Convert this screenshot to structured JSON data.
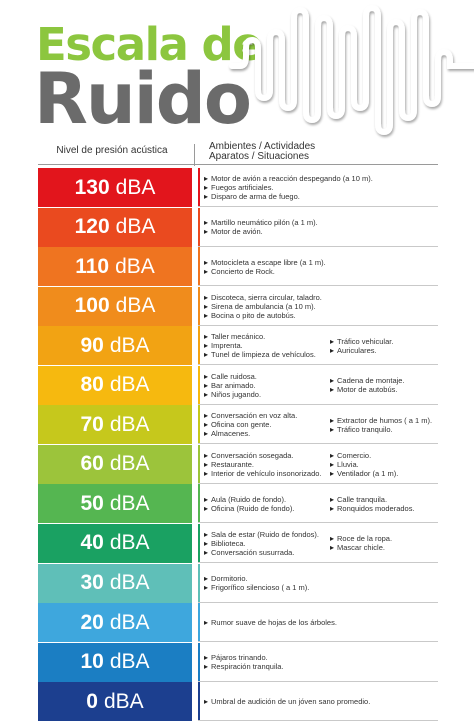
{
  "title": {
    "line1": "Escala de",
    "line2": "Ruido"
  },
  "header": {
    "left": "Nivel de presión acústica",
    "right_line1": "Ambientes / Actividades",
    "right_line2": "Aparatos / Situaciones"
  },
  "unit": "dBA",
  "rows": [
    {
      "level": "130",
      "color": "#e2151c",
      "col1": [
        "Motor de avión a reacción despegando (a 10 m).",
        "Fuegos artificiales.",
        "Disparo de arma de fuego."
      ],
      "col2": []
    },
    {
      "level": "120",
      "color": "#ea4a1f",
      "col1": [
        "Martillo neumático pilón (a 1 m).",
        "Motor de avión."
      ],
      "col2": []
    },
    {
      "level": "110",
      "color": "#ef7420",
      "col1": [
        "Motocicleta a escape libre (a 1 m).",
        "Concierto de Rock."
      ],
      "col2": []
    },
    {
      "level": "100",
      "color": "#f08c1c",
      "col1": [
        "Discoteca, sierra circular, taladro.",
        "Sirena de ambulancia (a 10 m).",
        "Bocina o pito de autobús."
      ],
      "col2": []
    },
    {
      "level": "90",
      "color": "#f2a313",
      "col1": [
        "Taller mecánico.",
        "Imprenta.",
        "Tunel de limpieza de vehículos."
      ],
      "col2": [
        "Tráfico vehicular.",
        "Auriculares."
      ]
    },
    {
      "level": "80",
      "color": "#f6b90f",
      "col1": [
        "Calle ruidosa.",
        "Bar animado.",
        "Niños jugando."
      ],
      "col2": [
        "Cadena de montaje.",
        "Motor de autobús."
      ]
    },
    {
      "level": "70",
      "color": "#c6c81c",
      "col1": [
        "Conversación en voz alta.",
        "Oficina con gente.",
        "Almacenes."
      ],
      "col2": [
        "Extractor de humos ( a 1 m).",
        "Tráfico tranquilo."
      ]
    },
    {
      "level": "60",
      "color": "#9cc43b",
      "col1": [
        "Conversación sosegada.",
        "Restaurante.",
        "Interior de vehículo insonorizado."
      ],
      "col2": [
        "Comercio.",
        "Lluvia.",
        "Ventilador (a 1 m)."
      ]
    },
    {
      "level": "50",
      "color": "#55b651",
      "col1": [
        "Aula (Ruido de fondo).",
        "Oficina (Ruido de fondo)."
      ],
      "col2": [
        "Calle tranquila.",
        "Ronquidos moderados."
      ]
    },
    {
      "level": "40",
      "color": "#1aa162",
      "col1": [
        "Sala de estar (Ruido de fondos).",
        "Biblioteca.",
        "Conversación susurrada."
      ],
      "col2": [
        "Roce de la ropa.",
        "Mascar chicle."
      ]
    },
    {
      "level": "30",
      "color": "#5fbfb8",
      "col1": [
        "Dormitorio.",
        "Frigorífico silencioso ( a 1 m)."
      ],
      "col2": []
    },
    {
      "level": "20",
      "color": "#3ea7dd",
      "col1": [
        "Rumor suave de hojas de los árboles."
      ],
      "col2": []
    },
    {
      "level": "10",
      "color": "#1b7ec3",
      "col1": [
        "Pájaros trinando.",
        "Respiración tranquila."
      ],
      "col2": []
    },
    {
      "level": "0",
      "color": "#1c3f8f",
      "col1": [
        "Umbral de audición de un jóven sano promedio."
      ],
      "col2": []
    }
  ]
}
